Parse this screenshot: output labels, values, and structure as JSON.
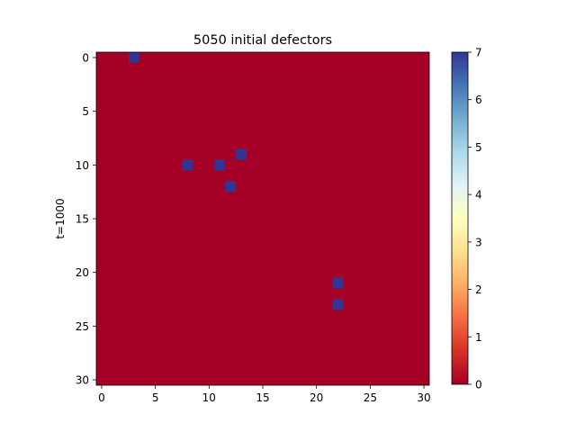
{
  "chart_data": {
    "type": "heatmap",
    "title": "5050 initial defectors",
    "xlabel": "",
    "ylabel": "t=1000",
    "grid_size": 31,
    "xlim": [
      -0.5,
      30.5
    ],
    "ylim": [
      30.5,
      -0.5
    ],
    "x_ticks": [
      0,
      5,
      10,
      15,
      20,
      25,
      30
    ],
    "y_ticks": [
      0,
      5,
      10,
      15,
      20,
      25,
      30
    ],
    "background_value": 0,
    "cells": [
      {
        "x": 3,
        "y": 0,
        "value": 7
      },
      {
        "x": 13,
        "y": 9,
        "value": 7
      },
      {
        "x": 8,
        "y": 10,
        "value": 7
      },
      {
        "x": 11,
        "y": 10,
        "value": 7
      },
      {
        "x": 12,
        "y": 12,
        "value": 7
      },
      {
        "x": 22,
        "y": 21,
        "value": 7
      },
      {
        "x": 22,
        "y": 23,
        "value": 7
      }
    ],
    "colorbar": {
      "colormap": "RdYlBu",
      "min": 0,
      "max": 7,
      "ticks": [
        0,
        1,
        2,
        3,
        4,
        5,
        6,
        7
      ],
      "low_color": "#a50026",
      "high_color": "#313695"
    }
  }
}
